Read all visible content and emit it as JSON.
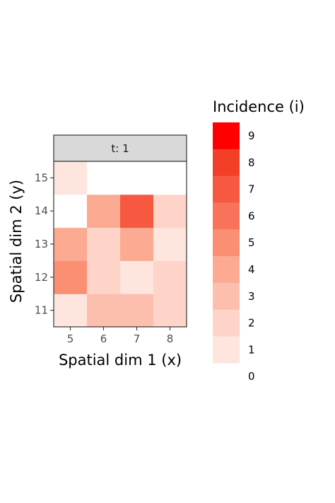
{
  "chart_data": {
    "type": "heatmap",
    "facet": "t: 1",
    "xlabel": "Spatial dim 1 (x)",
    "ylabel": "Spatial dim 2 (y)",
    "x_ticks": [
      5,
      6,
      7,
      8
    ],
    "y_ticks": [
      11,
      12,
      13,
      14,
      15
    ],
    "cells": [
      {
        "x": 5,
        "y": 11,
        "value": 1
      },
      {
        "x": 6,
        "y": 11,
        "value": 3
      },
      {
        "x": 7,
        "y": 11,
        "value": 3
      },
      {
        "x": 8,
        "y": 11,
        "value": 2
      },
      {
        "x": 5,
        "y": 12,
        "value": 5
      },
      {
        "x": 6,
        "y": 12,
        "value": 2
      },
      {
        "x": 7,
        "y": 12,
        "value": 1
      },
      {
        "x": 8,
        "y": 12,
        "value": 2
      },
      {
        "x": 5,
        "y": 13,
        "value": 4
      },
      {
        "x": 6,
        "y": 13,
        "value": 2
      },
      {
        "x": 7,
        "y": 13,
        "value": 4
      },
      {
        "x": 8,
        "y": 13,
        "value": 1
      },
      {
        "x": 5,
        "y": 14,
        "value": 0
      },
      {
        "x": 6,
        "y": 14,
        "value": 4
      },
      {
        "x": 7,
        "y": 14,
        "value": 7
      },
      {
        "x": 8,
        "y": 14,
        "value": 2
      },
      {
        "x": 5,
        "y": 15,
        "value": 1
      },
      {
        "x": 6,
        "y": 15,
        "value": 0
      },
      {
        "x": 7,
        "y": 15,
        "value": 0
      },
      {
        "x": 8,
        "y": 15,
        "value": 0
      }
    ],
    "legend": {
      "title": "Incidence (i)",
      "levels": [
        0,
        1,
        2,
        3,
        4,
        5,
        6,
        7,
        8,
        9
      ],
      "colors": [
        "#ffffff",
        "#fee5dd",
        "#fed4c8",
        "#fdbfad",
        "#fcaa92",
        "#fb8f73",
        "#f9735a",
        "#f65940",
        "#f33f28",
        "#ff0000"
      ]
    },
    "colors": {
      "strip_fill": "#d9d9d9",
      "panel_border": "#333333",
      "tick_color": "#333333"
    }
  }
}
